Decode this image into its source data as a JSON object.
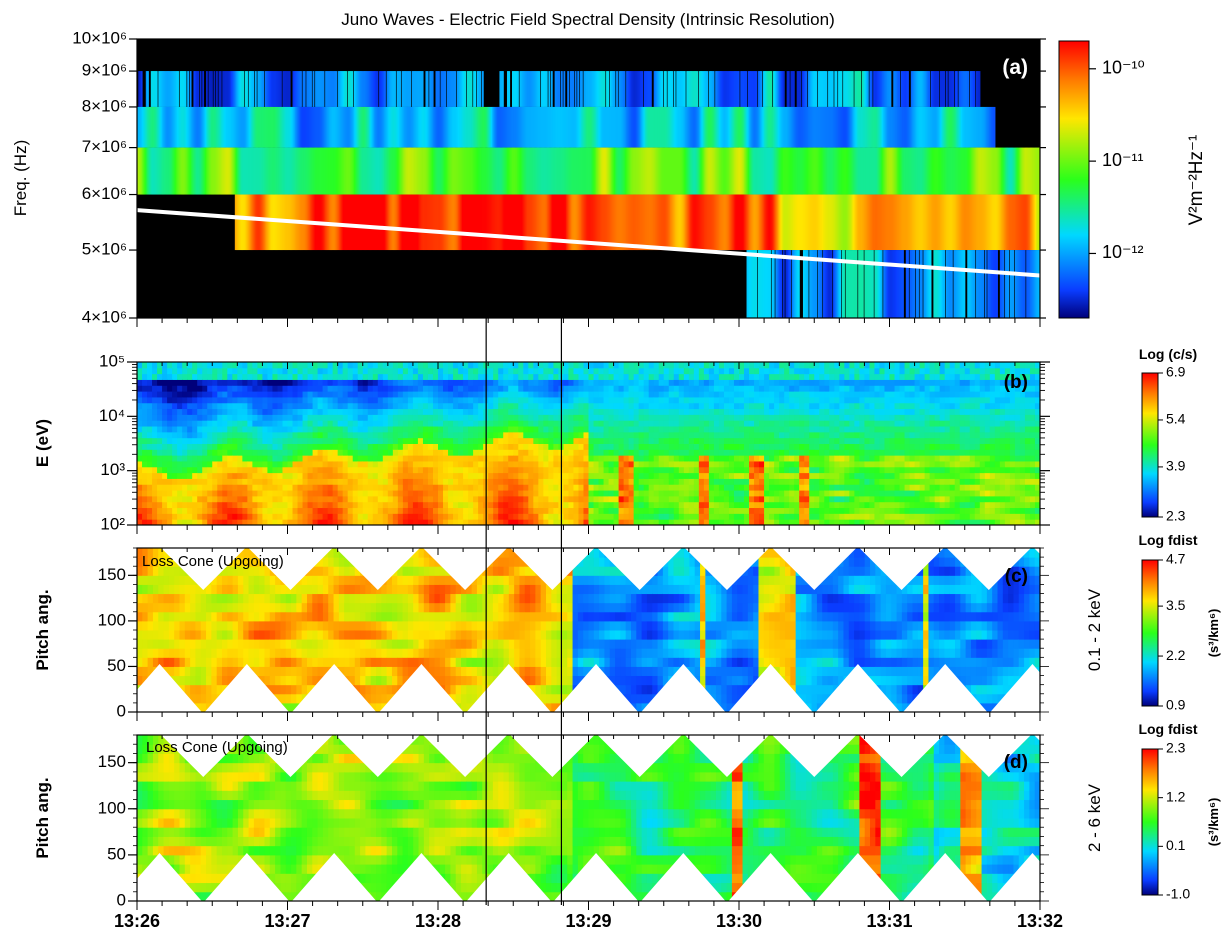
{
  "chart_data": [
    {
      "panel": "a",
      "type": "heatmap",
      "title": "Juno Waves - Electric Field Spectral Density (Intrinsic Resolution)",
      "label": "(a)",
      "ylabel": "Freq. (Hz)",
      "yscale": "log",
      "ylim": [
        4000000,
        10000000
      ],
      "yticks": [
        "4×10⁶",
        "5×10⁶",
        "6×10⁶",
        "7×10⁶",
        "8×10⁶",
        "9×10⁶",
        "10×10⁶"
      ],
      "xlim": [
        "13:26",
        "13:32"
      ],
      "background": "#000000",
      "colorbar": {
        "label": "V²m⁻²Hz⁻¹",
        "scale": "log",
        "ticks": [
          "10⁻¹²",
          "10⁻¹¹",
          "10⁻¹⁰"
        ],
        "range": [
          2e-13,
          2e-10
        ]
      },
      "overlay_line": {
        "color": "#ffffff",
        "from": [
          "13:26",
          5700000
        ],
        "to": [
          "13:32",
          4600000
        ]
      },
      "channels": [
        {
          "freq_range": [
            8000000,
            9000000
          ],
          "level": "low",
          "segments": [
            [
              "13:26",
              "13:28.3"
            ],
            [
              "13:28.4",
              "13:31.6"
            ]
          ]
        },
        {
          "freq_range": [
            7000000,
            8000000
          ],
          "level": "low-mid",
          "segments": [
            [
              "13:26",
              "13:31.7"
            ]
          ]
        },
        {
          "freq_range": [
            6000000,
            7000000
          ],
          "level": "mid",
          "segments": [
            [
              "13:26",
              "13:32"
            ]
          ]
        },
        {
          "freq_range": [
            5000000,
            6000000
          ],
          "level": "high",
          "segments": [
            [
              "13:26.65",
              "13:32"
            ]
          ]
        },
        {
          "freq_range": [
            4000000,
            5000000
          ],
          "level": "low",
          "segments": [
            [
              "13:30.05",
              "13:32"
            ]
          ]
        }
      ]
    },
    {
      "panel": "b",
      "type": "heatmap",
      "label": "(b)",
      "ylabel": "E (eV)",
      "yscale": "log",
      "ylim": [
        100,
        100000
      ],
      "yticks": [
        "10²",
        "10³",
        "10⁴",
        "10⁵"
      ],
      "xlim": [
        "13:26",
        "13:32"
      ],
      "colorbar": {
        "label": "Log (c/s)",
        "ticks": [
          "2.3",
          "3.9",
          "5.4",
          "6.9"
        ],
        "range": [
          2.3,
          6.9
        ]
      }
    },
    {
      "panel": "c",
      "type": "heatmap",
      "label": "(c)",
      "annotation": "Loss Cone (Upgoing)",
      "ylabel": "Pitch ang.",
      "right_label": "0.1 - 2 keV",
      "ylim": [
        0,
        180
      ],
      "yticks": [
        "0",
        "50",
        "100",
        "150"
      ],
      "xlim": [
        "13:26",
        "13:32"
      ],
      "colorbar": {
        "label": "Log fdist",
        "unit": "(s³/km⁶)",
        "ticks": [
          "0.9",
          "2.2",
          "3.5",
          "4.7"
        ],
        "range": [
          0.9,
          4.7
        ]
      }
    },
    {
      "panel": "d",
      "type": "heatmap",
      "label": "(d)",
      "annotation": "Loss Cone (Upgoing)",
      "ylabel": "Pitch ang.",
      "right_label": "2 - 6 keV",
      "ylim": [
        0,
        180
      ],
      "yticks": [
        "0",
        "50",
        "100",
        "150"
      ],
      "xlim": [
        "13:26",
        "13:32"
      ],
      "colorbar": {
        "label": "Log fdist",
        "unit": "(s³/km⁶)",
        "ticks": [
          "-1.0",
          "0.1",
          "1.2",
          "2.3"
        ],
        "range": [
          -1.0,
          2.3
        ]
      }
    }
  ],
  "time_axis": {
    "ticks": [
      "13:26",
      "13:27",
      "13:28",
      "13:29",
      "13:30",
      "13:31",
      "13:32"
    ],
    "min": 0,
    "max": 6
  },
  "marker_lines": [
    2.32,
    2.82
  ],
  "colors": {
    "frame": "#000000",
    "marker": "#000000",
    "overlay": "#ffffff",
    "loss_cone": "#ffffff"
  }
}
